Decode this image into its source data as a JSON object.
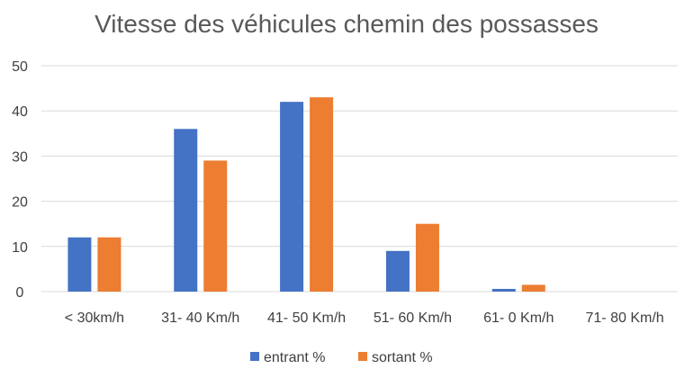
{
  "chart_data": {
    "type": "bar",
    "title": "Vitesse des véhicules chemin des possasses",
    "categories": [
      "< 30km/h",
      "31- 40 Km/h",
      "41- 50 Km/h",
      "51- 60 Km/h",
      "61- 0 Km/h",
      "71- 80 Km/h"
    ],
    "series": [
      {
        "name": "entrant %",
        "color": "#4472C4",
        "values": [
          12,
          36,
          42,
          9,
          0.6,
          0
        ]
      },
      {
        "name": "sortant %",
        "color": "#ED7D31",
        "values": [
          12,
          29,
          43,
          15,
          1.5,
          0
        ]
      }
    ],
    "ylim": [
      0,
      50
    ],
    "yticks": [
      0,
      10,
      20,
      30,
      40,
      50
    ],
    "xlabel": "",
    "ylabel": "",
    "grid": true,
    "legend_position": "bottom"
  }
}
